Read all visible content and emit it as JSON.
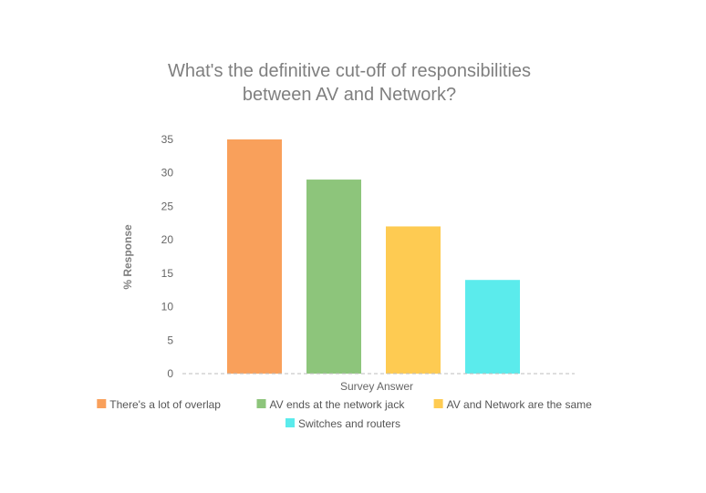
{
  "chart_data": {
    "type": "bar",
    "title_lines": [
      "What's the definitive cut-off of responsibilities",
      "between AV and Network?"
    ],
    "xlabel": "Survey Answer",
    "ylabel": "% Response",
    "ylim": [
      0,
      35
    ],
    "yticks": [
      "0",
      "5",
      "10",
      "15",
      "20",
      "25",
      "30",
      "35"
    ],
    "grid": false,
    "legend_position": "bottom-center",
    "series": [
      {
        "name": "There's a lot of overlap",
        "value": 35,
        "color": "#F9A05B"
      },
      {
        "name": "AV ends at the network jack",
        "value": 29,
        "color": "#8DC57B"
      },
      {
        "name": "AV and Network are the same",
        "value": 22,
        "color": "#FECB52"
      },
      {
        "name": "Switches and routers",
        "value": 14,
        "color": "#5BEBEC"
      }
    ]
  }
}
